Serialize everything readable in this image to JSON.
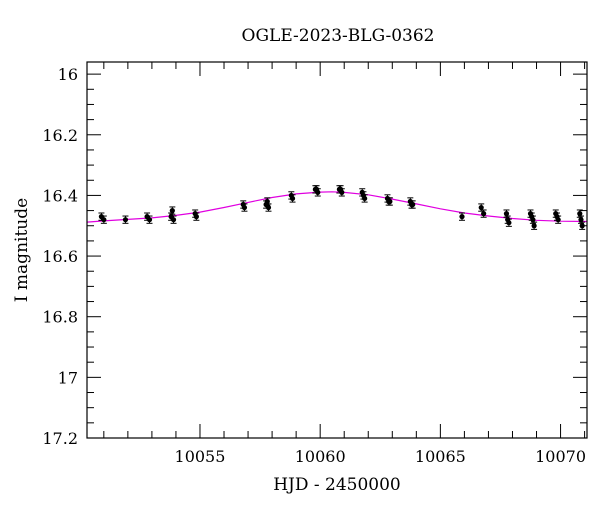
{
  "chart_data": {
    "type": "scatter",
    "title": "OGLE-2023-BLG-0362",
    "xlabel": "HJD - 2450000",
    "ylabel": "I magnitude",
    "xlim": [
      10050.3,
      10071.1
    ],
    "ylim": [
      15.96,
      17.2
    ],
    "y_inverted": true,
    "x_ticks": [
      10055,
      10060,
      10065,
      10070
    ],
    "x_tick_labels": [
      "10055",
      "10060",
      "10065",
      "10070"
    ],
    "y_ticks": [
      16,
      16.2,
      16.4,
      16.6,
      16.8,
      17,
      17.2
    ],
    "y_tick_labels": [
      "16",
      "16.2",
      "16.4",
      "16.6",
      "16.8",
      "17",
      "17.2"
    ],
    "grid": false,
    "legend": "none",
    "series": [
      {
        "kind": "points",
        "color": "#000000",
        "x": [
          10050.9,
          10051.0,
          10051.9,
          10052.8,
          10052.9,
          10053.8,
          10053.85,
          10053.9,
          10054.8,
          10054.85,
          10056.8,
          10056.85,
          10057.75,
          10057.8,
          10057.85,
          10058.8,
          10058.85,
          10059.8,
          10059.85,
          10059.9,
          10060.8,
          10060.85,
          10060.9,
          10061.75,
          10061.8,
          10061.85,
          10062.8,
          10062.85,
          10062.9,
          10063.75,
          10063.8,
          10063.85,
          10065.9,
          10066.7,
          10066.8,
          10067.75,
          10067.8,
          10067.85,
          10068.75,
          10068.8,
          10068.85,
          10068.9,
          10069.8,
          10069.85,
          10069.9,
          10070.8,
          10070.85,
          10070.9
        ],
        "y": [
          16.47,
          16.48,
          16.48,
          16.47,
          16.48,
          16.47,
          16.45,
          16.48,
          16.46,
          16.47,
          16.43,
          16.44,
          16.43,
          16.42,
          16.44,
          16.4,
          16.41,
          16.38,
          16.38,
          16.39,
          16.38,
          16.38,
          16.39,
          16.39,
          16.4,
          16.41,
          16.41,
          16.42,
          16.42,
          16.42,
          16.43,
          16.43,
          16.47,
          16.44,
          16.46,
          16.46,
          16.48,
          16.49,
          16.46,
          16.47,
          16.48,
          16.5,
          16.46,
          16.47,
          16.48,
          16.46,
          16.48,
          16.5
        ],
        "yerr": 0.012
      },
      {
        "kind": "model",
        "color": "#e000e0",
        "x": [
          10050.3,
          10051.0,
          10052.0,
          10053.0,
          10054.0,
          10055.0,
          10056.0,
          10057.0,
          10058.0,
          10059.0,
          10060.0,
          10060.5,
          10061.0,
          10062.0,
          10063.0,
          10064.0,
          10065.0,
          10066.0,
          10067.0,
          10068.0,
          10069.0,
          10070.0,
          10071.1
        ],
        "y": [
          16.488,
          16.484,
          16.479,
          16.474,
          16.466,
          16.455,
          16.44,
          16.423,
          16.407,
          16.395,
          16.389,
          16.388,
          16.39,
          16.398,
          16.412,
          16.428,
          16.444,
          16.458,
          16.468,
          16.476,
          16.482,
          16.485,
          16.486
        ]
      }
    ]
  }
}
